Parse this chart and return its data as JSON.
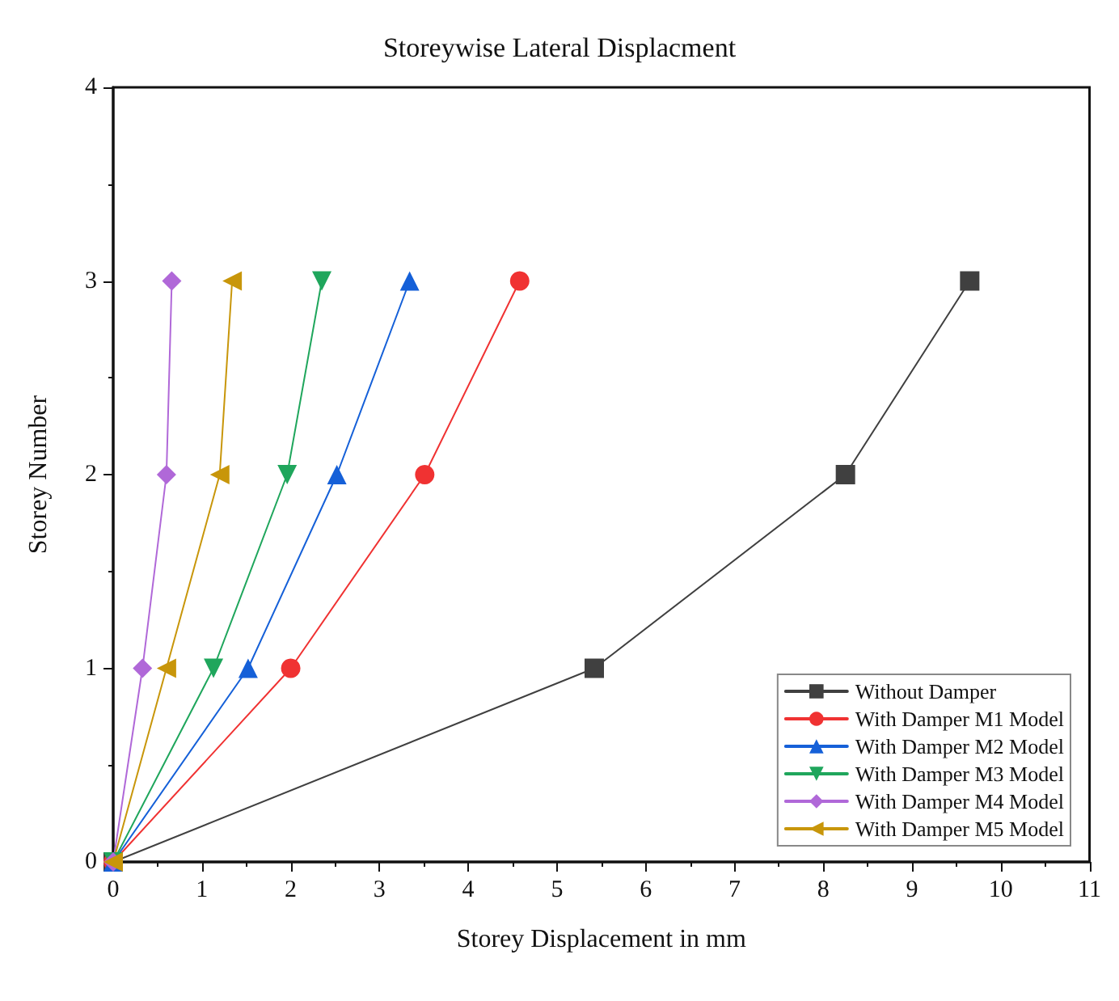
{
  "chart_data": {
    "type": "line",
    "title": "Storeywise Lateral Displacment",
    "xlabel": "Storey Displacement in mm",
    "ylabel": "Storey Number",
    "series": [
      {
        "name": "Without Damper",
        "color": "#404040",
        "marker": "square",
        "x": [
          0,
          5.42,
          8.25,
          9.65
        ],
        "values": [
          0,
          1,
          2,
          3
        ]
      },
      {
        "name": "With Damper M1 Model",
        "color": "#f03232",
        "marker": "circle",
        "x": [
          0,
          2.0,
          3.51,
          4.58
        ],
        "values": [
          0,
          1,
          2,
          3
        ]
      },
      {
        "name": "With Damper M2 Model",
        "color": "#1560d8",
        "marker": "triangle",
        "x": [
          0,
          1.52,
          2.52,
          3.34
        ],
        "values": [
          0,
          1,
          2,
          3
        ]
      },
      {
        "name": "With Damper M3 Model",
        "color": "#1fa65c",
        "marker": "triangle-down",
        "x": [
          0,
          1.13,
          1.96,
          2.35
        ],
        "values": [
          0,
          1,
          2,
          3
        ]
      },
      {
        "name": "With Damper M4 Model",
        "color": "#b068d8",
        "marker": "diamond",
        "x": [
          0,
          0.33,
          0.6,
          0.66
        ],
        "values": [
          0,
          1,
          2,
          3
        ]
      },
      {
        "name": "With Damper M5 Model",
        "color": "#c8960a",
        "marker": "triangle-left",
        "x": [
          0,
          0.6,
          1.2,
          1.34
        ],
        "values": [
          0,
          1,
          2,
          3
        ]
      }
    ],
    "xlim": [
      0,
      11
    ],
    "xticks": [
      0,
      1,
      2,
      3,
      4,
      5,
      6,
      7,
      8,
      9,
      10,
      11
    ],
    "ylim": [
      0,
      4
    ],
    "yticks": [
      0,
      1,
      2,
      3,
      4
    ],
    "grid": false,
    "legend": "bottom right",
    "line_style": "solid"
  }
}
